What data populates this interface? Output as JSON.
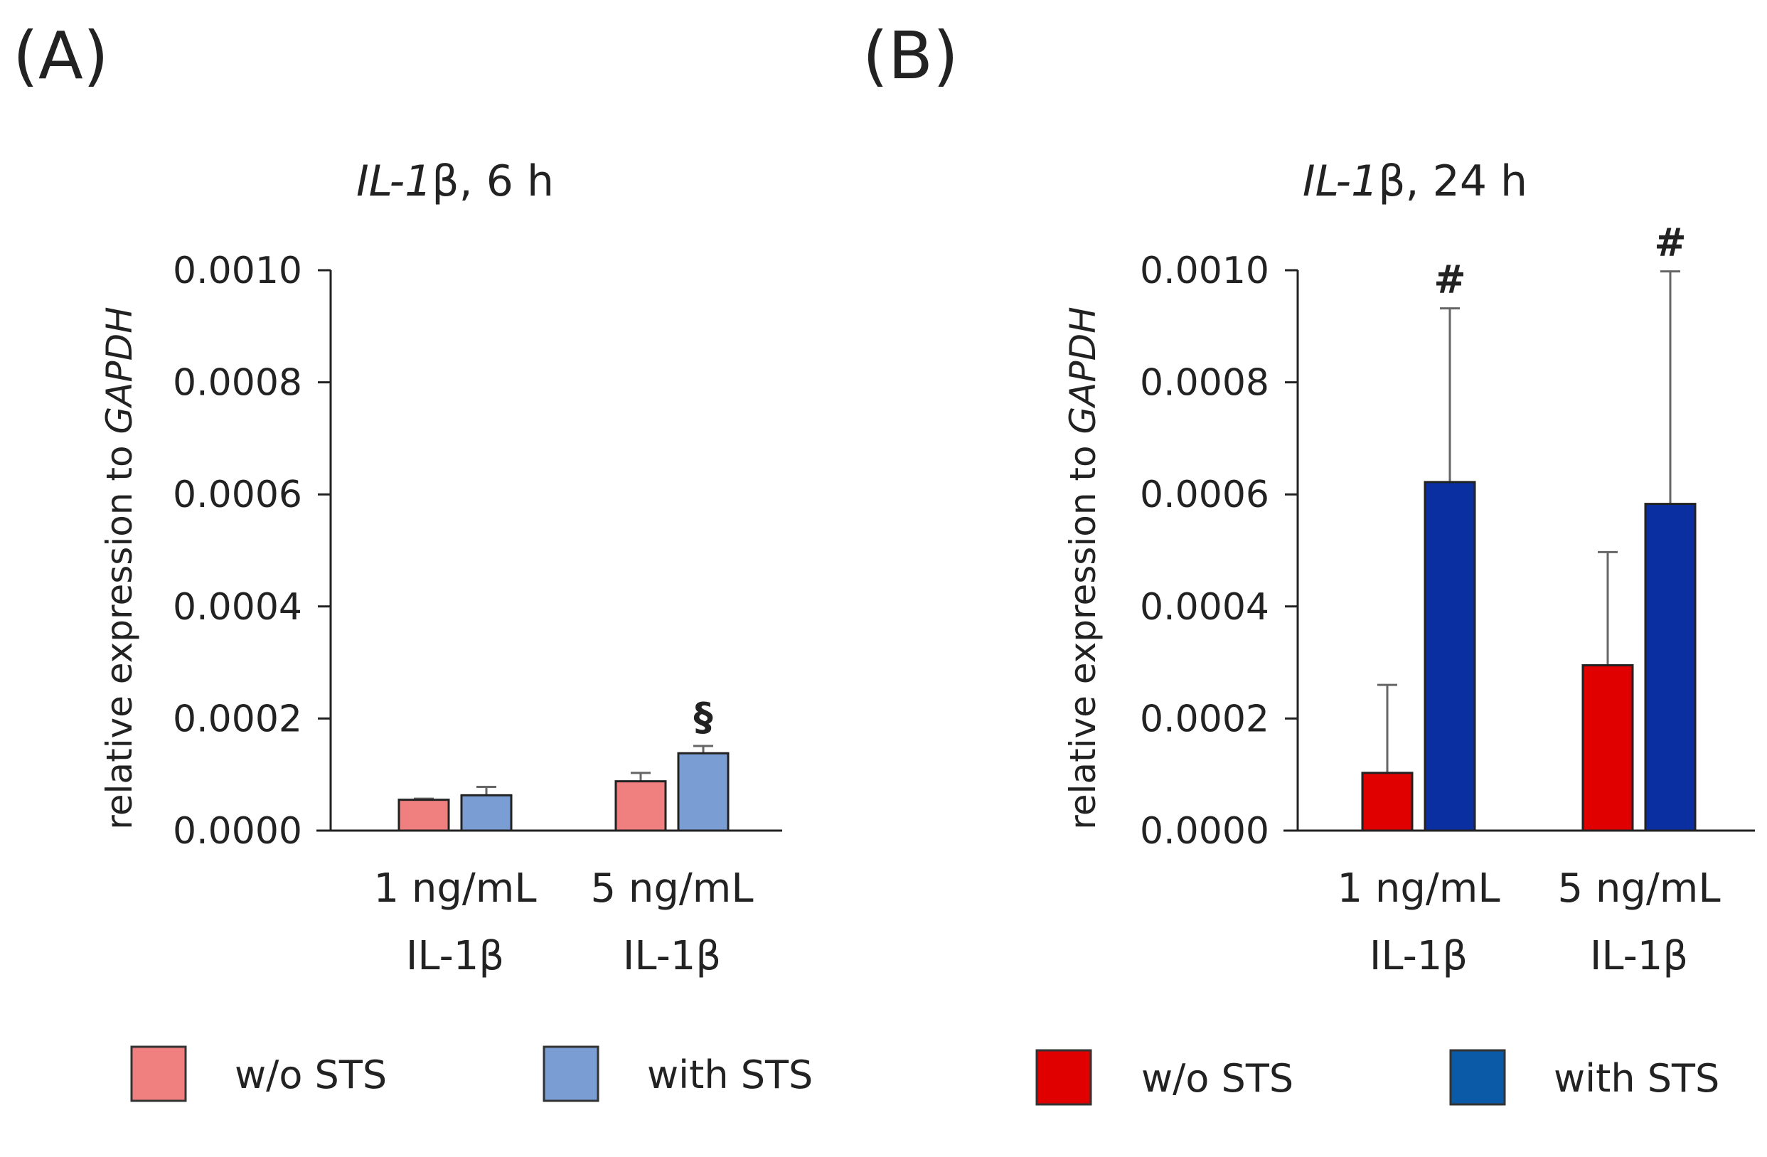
{
  "chart_data": [
    {
      "type": "bar",
      "panel": "(A)",
      "title_gene": "IL-1",
      "title_rest": "β, 6 h",
      "ylabel_plain": "relative expression to ",
      "ylabel_italic": "GAPDH",
      "ylim": [
        0,
        0.001
      ],
      "yticks": [
        "0.0000",
        "0.0002",
        "0.0004",
        "0.0006",
        "0.0008",
        "0.0010"
      ],
      "categories": [
        [
          "1 ng/mL",
          "IL-1β"
        ],
        [
          "5 ng/mL",
          "IL-1β"
        ]
      ],
      "series": [
        {
          "name": "w/o STS",
          "color": "#f08080",
          "values": [
            5.5e-05,
            8.8e-05
          ],
          "errors": [
            2e-06,
            1.5e-05
          ]
        },
        {
          "name": "with STS",
          "color": "#7a9ed4",
          "values": [
            6.3e-05,
            0.000138
          ],
          "errors": [
            1.5e-05,
            1.3e-05
          ]
        }
      ],
      "annotations": [
        {
          "text": "§",
          "category": 1,
          "series": 1
        }
      ],
      "legend": [
        {
          "label": "w/o STS",
          "color": "#f08080"
        },
        {
          "label": "with STS",
          "color": "#7a9ed4"
        }
      ]
    },
    {
      "type": "bar",
      "panel": "(B)",
      "title_gene": "IL-1",
      "title_rest": "β, 24 h",
      "ylabel_plain": "relative expression to ",
      "ylabel_italic": "GAPDH",
      "ylim": [
        0,
        0.001
      ],
      "yticks": [
        "0.0000",
        "0.0002",
        "0.0004",
        "0.0006",
        "0.0008",
        "0.0010"
      ],
      "categories": [
        [
          "1 ng/mL",
          "IL-1β"
        ],
        [
          "5 ng/mL",
          "IL-1β"
        ]
      ],
      "series": [
        {
          "name": "w/o STS",
          "color": "#e00000",
          "values": [
            0.000103,
            0.000295
          ],
          "errors": [
            0.000157,
            0.000202
          ]
        },
        {
          "name": "with STS",
          "color": "#0a2fa0",
          "values": [
            0.000622,
            0.000583
          ],
          "errors": [
            0.00031,
            0.000415
          ]
        }
      ],
      "annotations": [
        {
          "text": "#",
          "category": 0,
          "series": 1
        },
        {
          "text": "#",
          "category": 1,
          "series": 1
        }
      ],
      "legend": [
        {
          "label": "w/o STS",
          "color": "#e00000"
        },
        {
          "label": "with STS",
          "color": "#0a5aa8"
        }
      ]
    }
  ]
}
